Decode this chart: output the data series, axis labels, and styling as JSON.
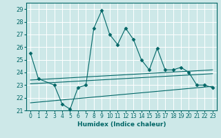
{
  "xlabel": "Humidex (Indice chaleur)",
  "bg_color": "#cde8e8",
  "grid_color": "#ffffff",
  "line_color": "#006666",
  "xlim": [
    -0.5,
    23.5
  ],
  "ylim": [
    21,
    29.5
  ],
  "yticks": [
    21,
    22,
    23,
    24,
    25,
    26,
    27,
    28,
    29
  ],
  "xticks": [
    0,
    1,
    2,
    3,
    4,
    5,
    6,
    7,
    8,
    9,
    10,
    11,
    12,
    13,
    14,
    15,
    16,
    17,
    18,
    19,
    20,
    21,
    22,
    23
  ],
  "series1_x": [
    0,
    1,
    3,
    4,
    5,
    6,
    7,
    8,
    9,
    10,
    11,
    12,
    13,
    14,
    15,
    16,
    17,
    18,
    19,
    20,
    21,
    22,
    23
  ],
  "series1_y": [
    25.5,
    23.5,
    23.0,
    21.5,
    21.1,
    22.8,
    23.0,
    27.5,
    28.9,
    27.0,
    26.2,
    27.5,
    26.6,
    25.0,
    24.2,
    25.9,
    24.2,
    24.2,
    24.4,
    24.0,
    23.0,
    23.0,
    22.8
  ],
  "series2_x": [
    0,
    23
  ],
  "series2_y": [
    23.1,
    23.9
  ],
  "series3_x": [
    0,
    23
  ],
  "series3_y": [
    23.4,
    24.2
  ],
  "series4_x": [
    0,
    23
  ],
  "series4_y": [
    21.6,
    22.9
  ]
}
